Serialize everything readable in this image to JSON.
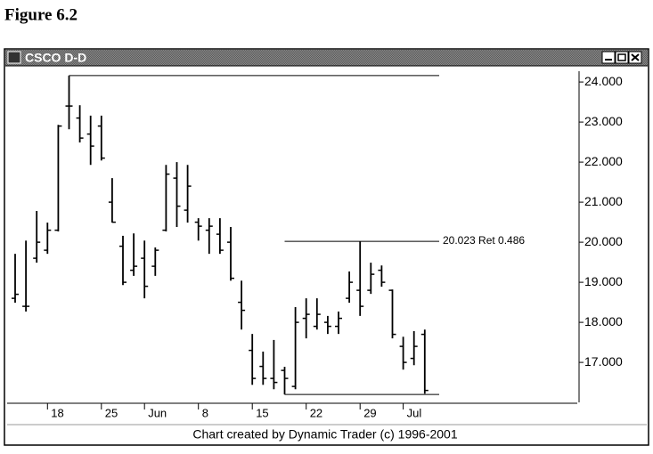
{
  "figure_caption": "Figure 6.2",
  "window": {
    "title": "CSCO D-D"
  },
  "chart_data": {
    "type": "ohlc",
    "color": "#000000",
    "categories": [
      null,
      null,
      null,
      "18",
      null,
      null,
      null,
      null,
      "25",
      null,
      null,
      null,
      "Jun",
      null,
      null,
      null,
      null,
      "8",
      null,
      null,
      null,
      null,
      "15",
      null,
      null,
      null,
      null,
      "22",
      null,
      null,
      null,
      null,
      "29",
      null,
      null,
      null,
      "Jul",
      null,
      null
    ],
    "open": [
      18.6,
      18.4,
      19.6,
      19.8,
      20.3,
      23.4,
      23.1,
      22.7,
      22.9,
      21.0,
      19.9,
      19.3,
      19.6,
      19.4,
      20.3,
      21.6,
      20.8,
      20.5,
      20.3,
      20.2,
      20.0,
      18.5,
      17.3,
      16.9,
      16.6,
      16.8,
      16.4,
      18.1,
      17.9,
      18.0,
      17.9,
      18.6,
      18.8,
      18.8,
      19.3,
      18.8,
      17.4,
      17.1,
      17.7
    ],
    "high": [
      19.71,
      20.04,
      20.78,
      20.49,
      22.93,
      24.16,
      23.42,
      23.16,
      23.16,
      21.6,
      20.16,
      20.22,
      20.04,
      19.87,
      21.93,
      22.0,
      21.93,
      20.6,
      20.6,
      20.6,
      20.38,
      19.04,
      17.71,
      17.27,
      17.56,
      16.89,
      18.38,
      18.6,
      18.6,
      18.16,
      18.27,
      19.27,
      20.02,
      19.49,
      19.42,
      18.82,
      17.64,
      17.78,
      17.82
    ],
    "low": [
      18.49,
      18.27,
      19.49,
      19.71,
      20.27,
      22.82,
      22.49,
      21.93,
      22.04,
      20.49,
      18.93,
      19.16,
      18.6,
      19.16,
      20.27,
      20.38,
      20.49,
      20.04,
      19.71,
      19.71,
      19.04,
      17.82,
      16.44,
      16.44,
      16.33,
      16.2,
      16.33,
      17.6,
      17.82,
      17.71,
      17.71,
      18.49,
      18.16,
      18.71,
      18.89,
      17.6,
      16.82,
      16.93,
      16.22
    ],
    "close": [
      18.7,
      18.4,
      20.0,
      20.3,
      22.9,
      23.4,
      22.6,
      22.4,
      22.1,
      20.5,
      19.0,
      19.4,
      18.9,
      19.8,
      21.7,
      20.9,
      21.4,
      20.4,
      20.4,
      19.8,
      19.1,
      18.3,
      16.6,
      16.6,
      16.5,
      16.6,
      18.0,
      18.2,
      18.2,
      17.9,
      18.1,
      19.0,
      18.4,
      19.2,
      19.0,
      17.7,
      17.0,
      17.4,
      16.3
    ],
    "ylim": [
      15.98,
      24.38
    ],
    "yticks": [
      {
        "value": 17,
        "label": "17.000"
      },
      {
        "value": 18,
        "label": "18.000"
      },
      {
        "value": 19,
        "label": "19.000"
      },
      {
        "value": 20,
        "label": "20.000"
      },
      {
        "value": 21,
        "label": "21.000"
      },
      {
        "value": 22,
        "label": "22.000"
      },
      {
        "value": 23,
        "label": "23.000"
      },
      {
        "value": 24,
        "label": "24.000"
      }
    ],
    "annotation": {
      "value": 20.023,
      "label": "20.023 Ret 0.486"
    },
    "footer": "Chart created by Dynamic Trader (c) 1996-2001"
  }
}
